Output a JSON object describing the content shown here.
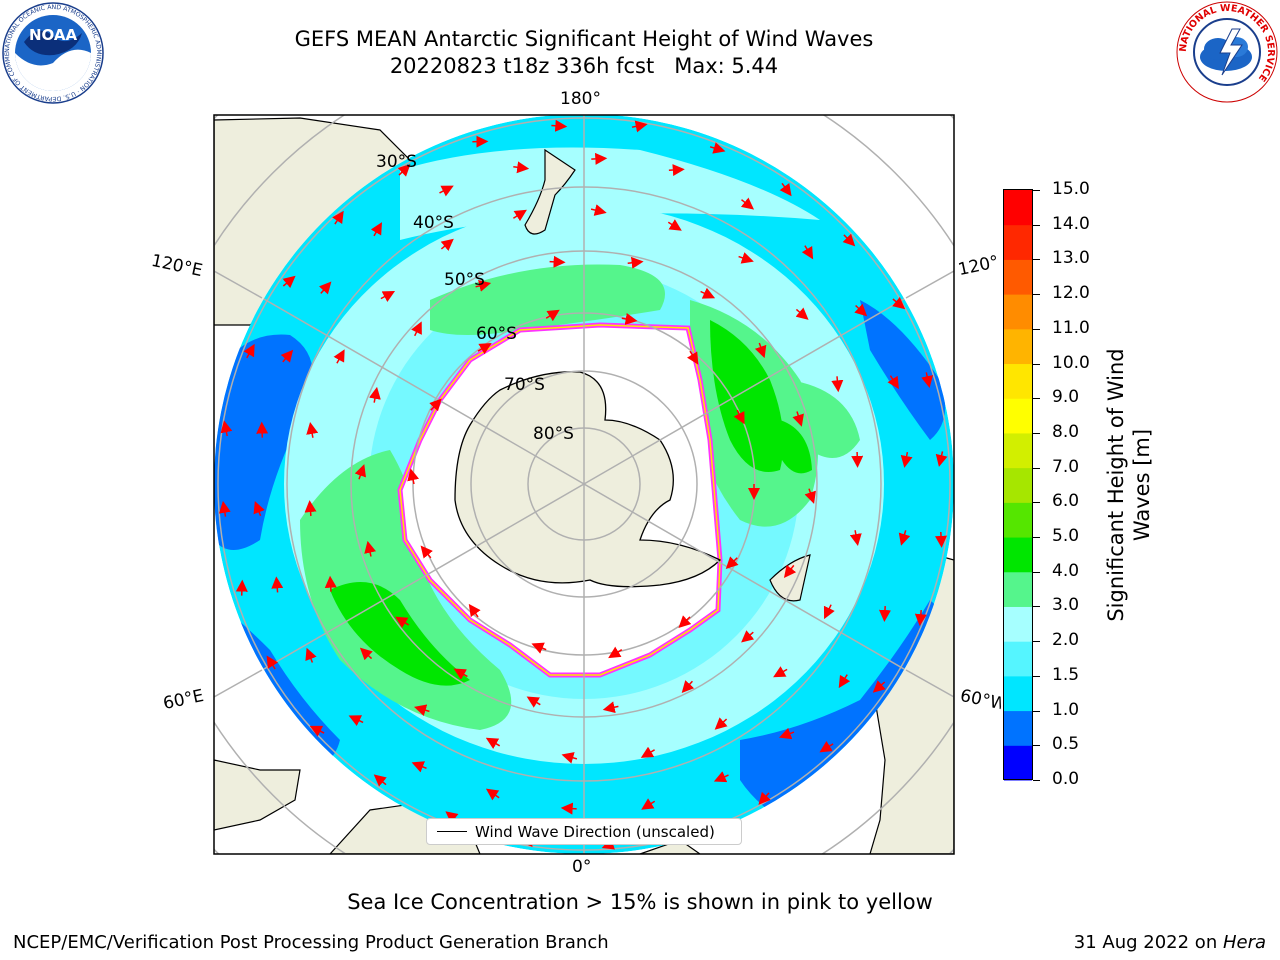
{
  "header": {
    "title_line1": "GEFS MEAN Antarctic Significant Height of Wind Waves",
    "title_line2": "20220823 t18z 336h fcst   Max: 5.44"
  },
  "logos": {
    "noaa": {
      "text": "NOAA",
      "ring_text": "NATIONAL OCEANIC AND ATMOSPHERIC ADMINISTRATION · U.S. DEPARTMENT OF COMMERCE"
    },
    "nws": {
      "ring_text": "NATIONAL WEATHER SERVICE"
    }
  },
  "map": {
    "lat_labels": [
      "30°S",
      "40°S",
      "50°S",
      "60°S",
      "70°S",
      "80°S"
    ],
    "lon_labels": {
      "top": "180°",
      "bottom": "0°",
      "left_upper": "120°E",
      "left_lower": "60°E",
      "right_upper": "120°",
      "right_lower": "60°W"
    },
    "legend_label": "Wind Wave Direction (unscaled)"
  },
  "colorbar": {
    "title": "Significant Height of Wind Waves [m]",
    "ticks": [
      "0.0",
      "0.5",
      "1.0",
      "1.5",
      "2.0",
      "3.0",
      "4.0",
      "5.0",
      "6.0",
      "7.0",
      "8.0",
      "9.0",
      "10.0",
      "11.0",
      "12.0",
      "13.0",
      "14.0",
      "15.0"
    ],
    "colors": [
      "#0000ff",
      "#0073ff",
      "#00e6ff",
      "#55f5ff",
      "#a6ffff",
      "#55f58c",
      "#00e600",
      "#55e600",
      "#a6e600",
      "#d2ef00",
      "#ffff00",
      "#ffe600",
      "#ffb400",
      "#ff8c00",
      "#ff5a00",
      "#ff2800",
      "#ff0000"
    ]
  },
  "footer": {
    "note": "Sea Ice Concentration > 15% is shown in pink to yellow",
    "credit": "NCEP/EMC/Verification Post Processing Product Generation Branch",
    "date_prefix": "31 Aug 2022 on ",
    "date_machine": "Hera"
  },
  "style_colors": {
    "land": "#eeeedd",
    "ice": "#ff33ff",
    "arrow": "#ff0000"
  }
}
